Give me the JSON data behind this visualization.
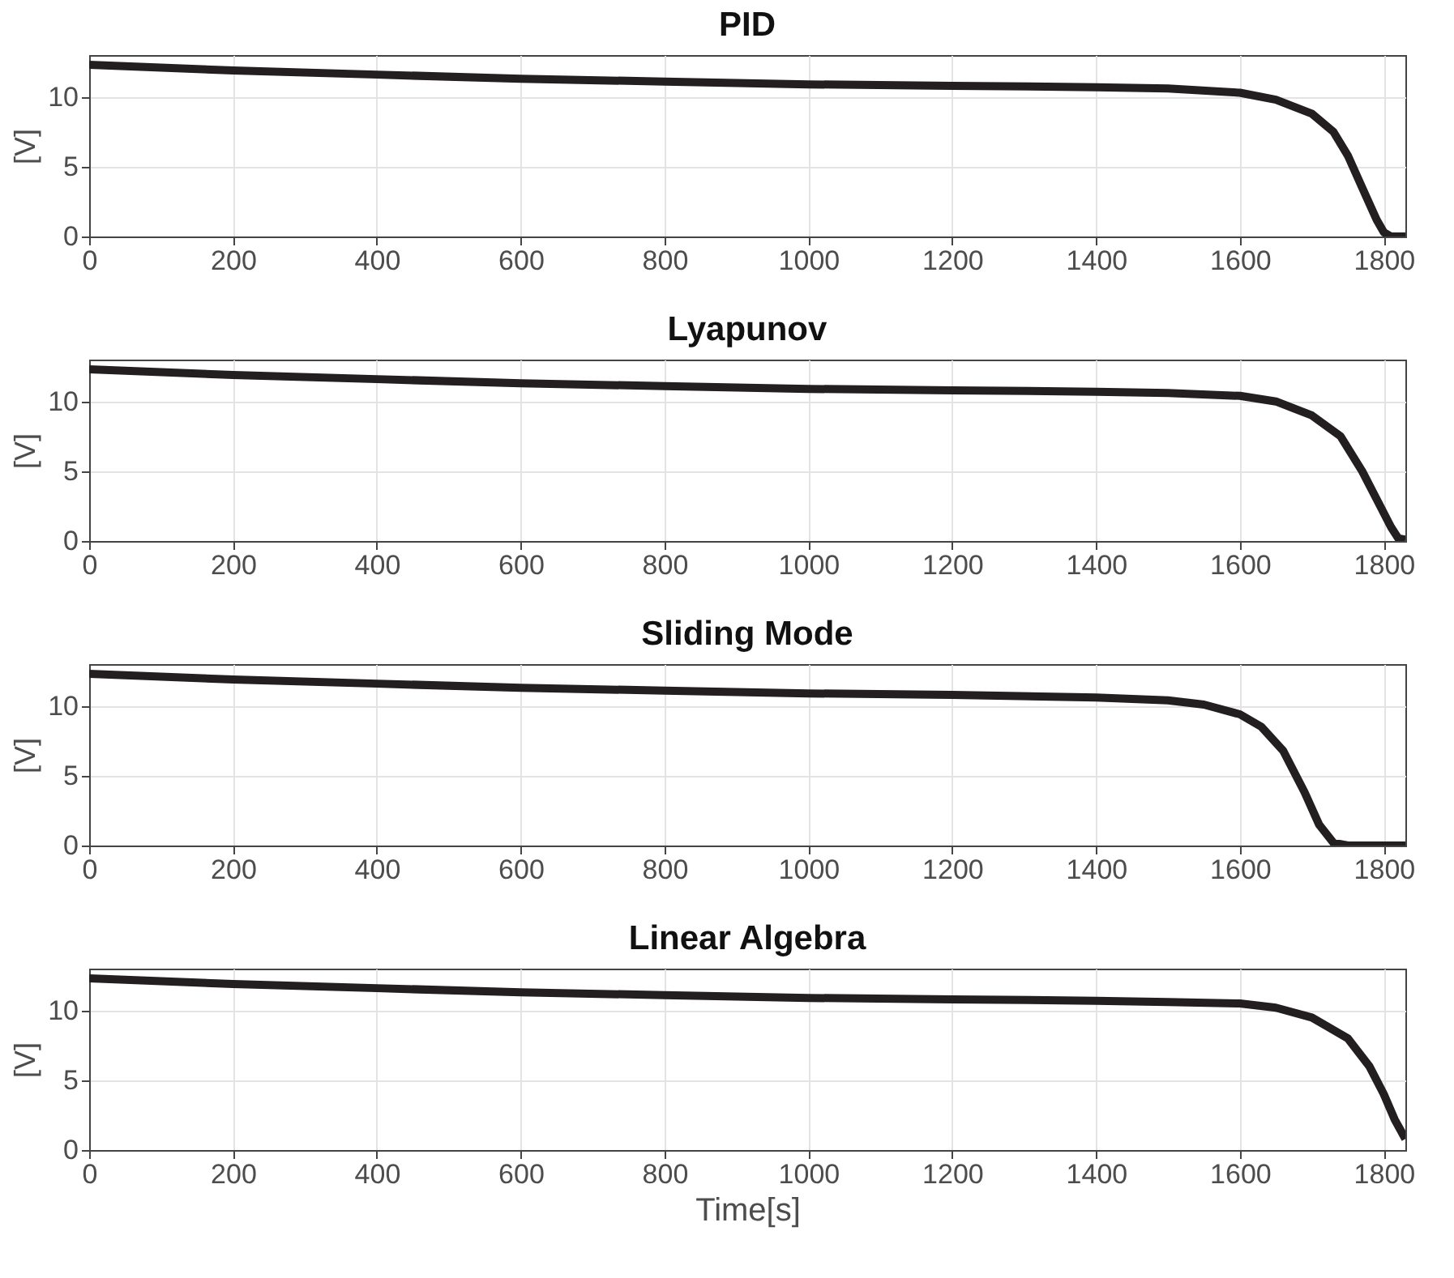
{
  "chart_data": [
    {
      "type": "line",
      "title": "PID",
      "ylabel": "[V]",
      "x": [
        0,
        200,
        400,
        600,
        800,
        1000,
        1200,
        1400,
        1500,
        1600,
        1650,
        1700,
        1730,
        1750,
        1770,
        1790,
        1800,
        1810,
        1830
      ],
      "series": [
        {
          "color": "#231f20",
          "values": [
            12.3,
            11.9,
            11.6,
            11.3,
            11.1,
            10.9,
            10.8,
            10.7,
            10.6,
            10.3,
            9.8,
            8.8,
            7.5,
            5.8,
            3.5,
            1.2,
            0.3,
            0,
            0
          ]
        }
      ],
      "xlim": [
        0,
        1830
      ],
      "xticks": [
        0,
        200,
        400,
        600,
        800,
        1000,
        1200,
        1400,
        1600,
        1800
      ],
      "ylim": [
        0,
        13
      ],
      "yticks": [
        0,
        5,
        10
      ],
      "grid": true
    },
    {
      "type": "line",
      "title": "Lyapunov",
      "ylabel": "[V]",
      "x": [
        0,
        200,
        400,
        600,
        800,
        1000,
        1200,
        1400,
        1500,
        1600,
        1650,
        1700,
        1740,
        1770,
        1790,
        1810,
        1820,
        1830
      ],
      "series": [
        {
          "color": "#231f20",
          "values": [
            12.3,
            11.9,
            11.6,
            11.3,
            11.1,
            10.9,
            10.8,
            10.7,
            10.6,
            10.4,
            10.0,
            9.0,
            7.5,
            5.0,
            3.0,
            1.0,
            0.2,
            0.1
          ]
        }
      ],
      "xlim": [
        0,
        1830
      ],
      "xticks": [
        0,
        200,
        400,
        600,
        800,
        1000,
        1200,
        1400,
        1600,
        1800
      ],
      "ylim": [
        0,
        13
      ],
      "yticks": [
        0,
        5,
        10
      ],
      "grid": true
    },
    {
      "type": "line",
      "title": "Sliding Mode",
      "ylabel": "[V]",
      "x": [
        0,
        200,
        400,
        600,
        800,
        1000,
        1200,
        1400,
        1500,
        1550,
        1600,
        1630,
        1660,
        1690,
        1710,
        1730,
        1750,
        1830
      ],
      "series": [
        {
          "color": "#231f20",
          "values": [
            12.3,
            11.9,
            11.6,
            11.3,
            11.1,
            10.9,
            10.8,
            10.6,
            10.4,
            10.1,
            9.4,
            8.5,
            6.8,
            3.8,
            1.5,
            0.2,
            0,
            0
          ]
        }
      ],
      "xlim": [
        0,
        1830
      ],
      "xticks": [
        0,
        200,
        400,
        600,
        800,
        1000,
        1200,
        1400,
        1600,
        1800
      ],
      "ylim": [
        0,
        13
      ],
      "yticks": [
        0,
        5,
        10
      ],
      "grid": true
    },
    {
      "type": "line",
      "title": "Linear Algebra",
      "ylabel": "[V]",
      "xlabel": "Time[s]",
      "x": [
        0,
        200,
        400,
        600,
        800,
        1000,
        1200,
        1400,
        1500,
        1600,
        1650,
        1700,
        1750,
        1780,
        1800,
        1815,
        1830
      ],
      "series": [
        {
          "color": "#231f20",
          "values": [
            12.3,
            11.9,
            11.6,
            11.3,
            11.1,
            10.9,
            10.8,
            10.7,
            10.6,
            10.5,
            10.2,
            9.5,
            8.0,
            6.0,
            4.0,
            2.2,
            0.8
          ]
        }
      ],
      "xlim": [
        0,
        1830
      ],
      "xticks": [
        0,
        200,
        400,
        600,
        800,
        1000,
        1200,
        1400,
        1600,
        1800
      ],
      "ylim": [
        0,
        13
      ],
      "yticks": [
        0,
        5,
        10
      ],
      "grid": true
    }
  ]
}
